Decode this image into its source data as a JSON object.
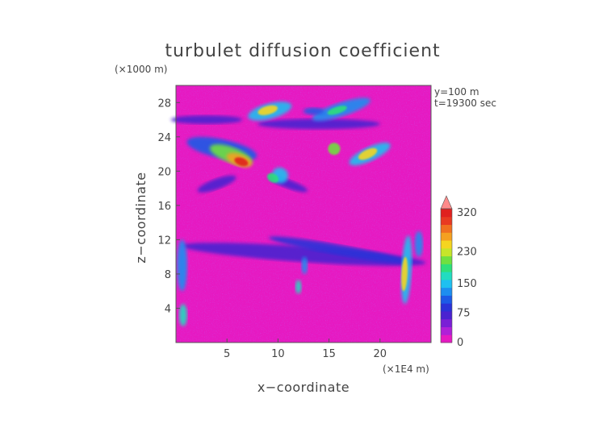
{
  "chart_data": {
    "type": "heatmap",
    "title": "turbulet diffusion coefficient",
    "xlabel": "x−coordinate",
    "ylabel": "z−coordinate",
    "x_unit": "(×1E4 m)",
    "y_unit": "(×1000 m)",
    "annotations": [
      "y=100  m",
      "t=19300 sec"
    ],
    "xlim": [
      0,
      25
    ],
    "ylim": [
      0,
      30
    ],
    "x_ticks": [
      5,
      10,
      15,
      20
    ],
    "y_ticks": [
      4,
      8,
      12,
      16,
      20,
      24,
      28
    ],
    "colorbar": {
      "levels": [
        0,
        75,
        150,
        230,
        320
      ],
      "labels": [
        "0",
        "75",
        "150",
        "230",
        "320"
      ],
      "colors": [
        "#e619c2",
        "#b020d8",
        "#7a1fd6",
        "#4a22d0",
        "#2a32d8",
        "#1c5ae6",
        "#1d8ef0",
        "#1fc0f0",
        "#22dcc0",
        "#2ee07a",
        "#6fe040",
        "#c6e52a",
        "#f5d520",
        "#f5a020",
        "#f07020",
        "#e83a22",
        "#e0201f"
      ],
      "extend_top_color": "#ff8a8a"
    },
    "background_value_color": "#e619c2",
    "features": [
      {
        "x": 6.2,
        "z": 21.2,
        "level": 320
      },
      {
        "x": 9.2,
        "z": 27.0,
        "level": 230
      },
      {
        "x": 16.0,
        "z": 27.0,
        "level": 150
      },
      {
        "x": 19.0,
        "z": 22.0,
        "level": 230
      },
      {
        "x": 15.5,
        "z": 22.5,
        "level": 230
      },
      {
        "x": 22.5,
        "z": 8.0,
        "level": 230
      },
      {
        "x": 0.6,
        "z": 9.0,
        "level": 150
      }
    ]
  }
}
